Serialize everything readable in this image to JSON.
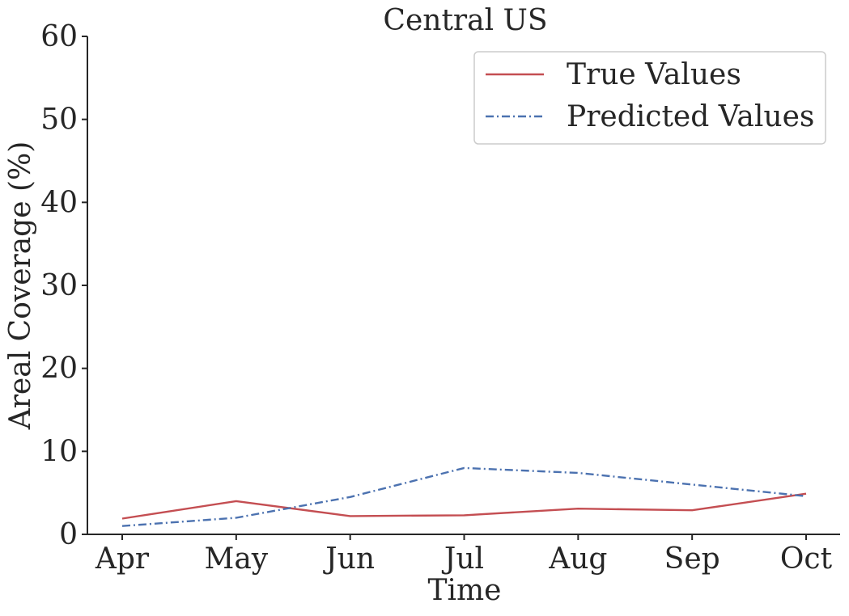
{
  "chart_data": {
    "type": "line",
    "title": "Central US",
    "xlabel": "Time",
    "ylabel": "Areal Coverage (%)",
    "categories": [
      "Apr",
      "May",
      "Jun",
      "Jul",
      "Aug",
      "Sep",
      "Oct"
    ],
    "ylim": [
      0,
      60
    ],
    "yticks": [
      0,
      10,
      20,
      30,
      40,
      50,
      60
    ],
    "grid": false,
    "legend_position": "top-right",
    "series": [
      {
        "name": "True Values",
        "color": "#c44e52",
        "line_style": "solid",
        "values": [
          1.9,
          4.0,
          2.2,
          2.3,
          3.1,
          2.9,
          4.9
        ]
      },
      {
        "name": "Predicted Values",
        "color": "#4c72b0",
        "line_style": "dashdot",
        "values": [
          1.0,
          2.0,
          4.5,
          8.0,
          7.4,
          6.0,
          4.6
        ]
      }
    ]
  }
}
